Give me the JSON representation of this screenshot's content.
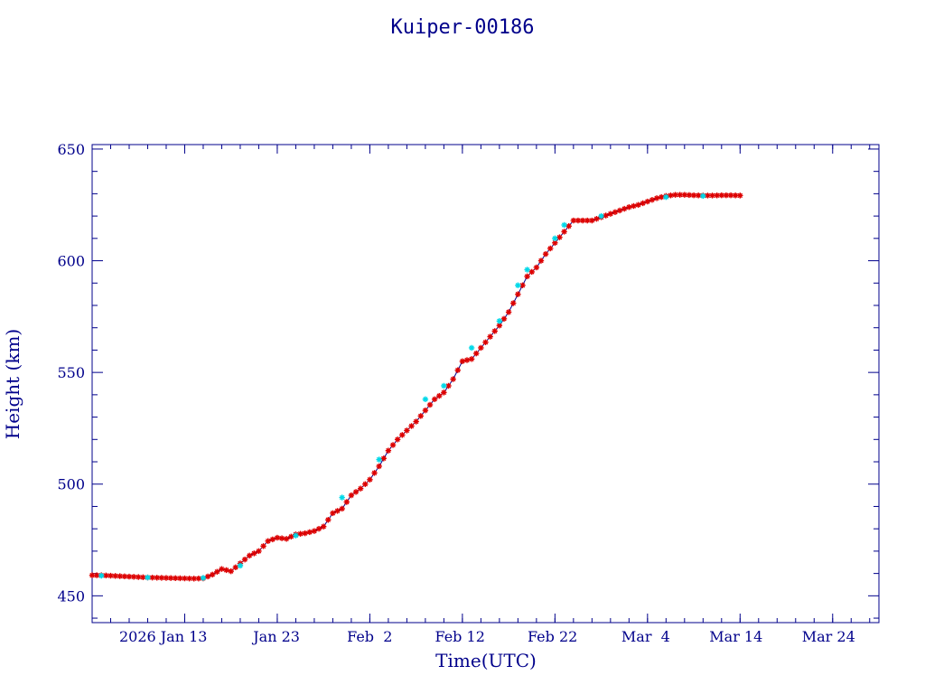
{
  "chart_data": {
    "type": "scatter",
    "title": "Kuiper-00186",
    "xlabel": "Time(UTC)",
    "ylabel": "Height (km)",
    "x_axis_type": "date",
    "xlim": [
      "2026-01-03",
      "2026-03-29"
    ],
    "ylim": [
      438,
      652
    ],
    "x_tick_labels": [
      {
        "date": "2026-01-13",
        "label": "2026 Jan 13"
      },
      {
        "date": "2026-01-23",
        "label": "Jan 23"
      },
      {
        "date": "2026-02-02",
        "label": "Feb  2"
      },
      {
        "date": "2026-02-12",
        "label": "Feb 12"
      },
      {
        "date": "2026-02-22",
        "label": "Feb 22"
      },
      {
        "date": "2026-03-04",
        "label": "Mar  4"
      },
      {
        "date": "2026-03-14",
        "label": "Mar 14"
      },
      {
        "date": "2026-03-24",
        "label": "Mar 24"
      }
    ],
    "y_ticks": [
      450,
      500,
      550,
      600,
      650
    ],
    "y_tick_labels": [
      "450",
      "500",
      "550",
      "600",
      "650"
    ],
    "grid": false,
    "colors": {
      "axis": "#00008b",
      "line": "#00008b",
      "marker_primary": "#dd0000",
      "marker_secondary": "#00d8e8"
    },
    "series": [
      {
        "marker": "asterisk",
        "points": [
          [
            "2026-01-03",
            459.2
          ],
          [
            "2026-01-04",
            459.2
          ],
          [
            "2026-01-05",
            459.0
          ],
          [
            "2026-01-06",
            458.8
          ],
          [
            "2026-01-07",
            458.6
          ],
          [
            "2026-01-08",
            458.4
          ],
          [
            "2026-01-09",
            458.2
          ],
          [
            "2026-01-10",
            458.1
          ],
          [
            "2026-01-11",
            458.0
          ],
          [
            "2026-01-12",
            457.9
          ],
          [
            "2026-01-13",
            457.8
          ],
          [
            "2026-01-14",
            457.7
          ],
          [
            "2026-01-15",
            457.8
          ],
          [
            "2026-01-16",
            459.5
          ],
          [
            "2026-01-17",
            462.0
          ],
          [
            "2026-01-18",
            461.0
          ],
          [
            "2026-01-19",
            464.5
          ],
          [
            "2026-01-20",
            468.0
          ],
          [
            "2026-01-21",
            470.0
          ],
          [
            "2026-01-22",
            474.5
          ],
          [
            "2026-01-23",
            476.0
          ],
          [
            "2026-01-24",
            475.5
          ],
          [
            "2026-01-25",
            477.5
          ],
          [
            "2026-01-26",
            478.0
          ],
          [
            "2026-01-27",
            479.0
          ],
          [
            "2026-01-28",
            481.0
          ],
          [
            "2026-01-29",
            487.0
          ],
          [
            "2026-01-30",
            489.0
          ],
          [
            "2026-01-31",
            495.0
          ],
          [
            "2026-02-01",
            498.0
          ],
          [
            "2026-02-02",
            502.0
          ],
          [
            "2026-02-03",
            508.0
          ],
          [
            "2026-02-04",
            515.0
          ],
          [
            "2026-02-05",
            520.0
          ],
          [
            "2026-02-06",
            524.0
          ],
          [
            "2026-02-07",
            528.0
          ],
          [
            "2026-02-08",
            533.0
          ],
          [
            "2026-02-09",
            538.0
          ],
          [
            "2026-02-10",
            541.0
          ],
          [
            "2026-02-11",
            547.0
          ],
          [
            "2026-02-12",
            555.0
          ],
          [
            "2026-02-13",
            556.0
          ],
          [
            "2026-02-14",
            561.0
          ],
          [
            "2026-02-15",
            566.0
          ],
          [
            "2026-02-16",
            571.0
          ],
          [
            "2026-02-17",
            577.0
          ],
          [
            "2026-02-18",
            585.0
          ],
          [
            "2026-02-19",
            593.0
          ],
          [
            "2026-02-20",
            597.0
          ],
          [
            "2026-02-21",
            603.0
          ],
          [
            "2026-02-22",
            608.0
          ],
          [
            "2026-02-23",
            613.0
          ],
          [
            "2026-02-24",
            618.0
          ],
          [
            "2026-02-25",
            618.0
          ],
          [
            "2026-02-26",
            618.0
          ],
          [
            "2026-02-27",
            619.5
          ],
          [
            "2026-02-28",
            621.0
          ],
          [
            "2026-03-01",
            622.5
          ],
          [
            "2026-03-02",
            624.0
          ],
          [
            "2026-03-03",
            625.0
          ],
          [
            "2026-03-04",
            626.5
          ],
          [
            "2026-03-05",
            628.0
          ],
          [
            "2026-03-06",
            629.0
          ],
          [
            "2026-03-07",
            629.5
          ],
          [
            "2026-03-08",
            629.5
          ],
          [
            "2026-03-09",
            629.3
          ],
          [
            "2026-03-10",
            629.2
          ],
          [
            "2026-03-11",
            629.2
          ],
          [
            "2026-03-12",
            629.3
          ],
          [
            "2026-03-13",
            629.3
          ],
          [
            "2026-03-14",
            629.2
          ]
        ]
      },
      {
        "marker": "asterisk",
        "points": [
          [
            "2026-01-04",
            459.0
          ],
          [
            "2026-01-09",
            458.2
          ],
          [
            "2026-01-15",
            458.0
          ],
          [
            "2026-01-19",
            463.5
          ],
          [
            "2026-01-25",
            477.0
          ],
          [
            "2026-01-30",
            494.0
          ],
          [
            "2026-02-03",
            511.0
          ],
          [
            "2026-02-08",
            538.0
          ],
          [
            "2026-02-10",
            544.0
          ],
          [
            "2026-02-13",
            561.0
          ],
          [
            "2026-02-16",
            573.0
          ],
          [
            "2026-02-18",
            589.0
          ],
          [
            "2026-02-19",
            596.0
          ],
          [
            "2026-02-22",
            610.0
          ],
          [
            "2026-02-23",
            616.0
          ],
          [
            "2026-02-27",
            620.0
          ],
          [
            "2026-03-06",
            628.5
          ],
          [
            "2026-03-10",
            629.0
          ]
        ]
      }
    ]
  }
}
